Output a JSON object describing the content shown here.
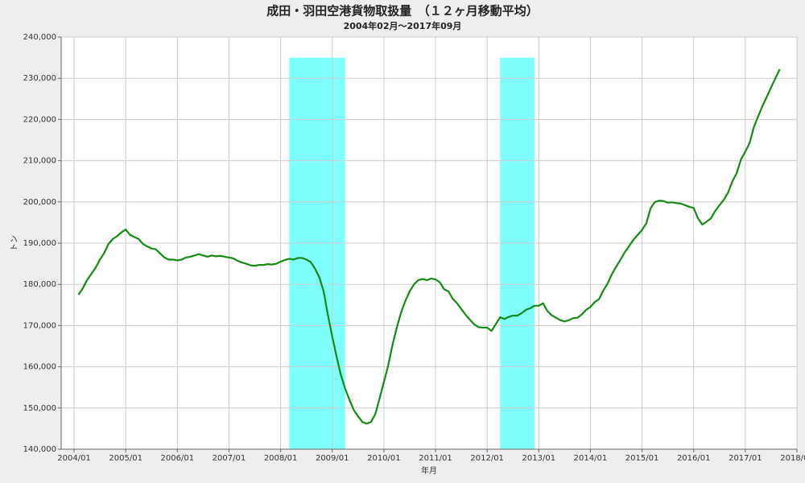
{
  "chart_data": {
    "type": "line",
    "title": "成田・羽田空港貨物取扱量　（１２ヶ月移動平均）",
    "subtitle": "2004年02月～2017年09月",
    "x_label": "年月",
    "y_label": "トン",
    "color": "#158a15",
    "shading_color": "#80ffff",
    "shading_top": 235000,
    "shading": [
      {
        "start": "2008/03",
        "end": "2009/04"
      },
      {
        "start": "2012/04",
        "end": "2012/12"
      }
    ],
    "xlim": [
      "2003/10",
      "2018/01"
    ],
    "xticks": [
      "2004/01",
      "2005/01",
      "2006/01",
      "2007/01",
      "2008/01",
      "2009/01",
      "2010/01",
      "2011/01",
      "2012/01",
      "2013/01",
      "2014/01",
      "2015/01",
      "2016/01",
      "2017/01",
      "2018/01"
    ],
    "ylim": [
      140000,
      240000
    ],
    "yticks": [
      {
        "value": 140000,
        "label": "140,000"
      },
      {
        "value": 150000,
        "label": "150,000"
      },
      {
        "value": 160000,
        "label": "160,000"
      },
      {
        "value": 170000,
        "label": "170,000"
      },
      {
        "value": 180000,
        "label": "180,000"
      },
      {
        "value": 190000,
        "label": "190,000"
      },
      {
        "value": 200000,
        "label": "200,000"
      },
      {
        "value": 210000,
        "label": "210,000"
      },
      {
        "value": 220000,
        "label": "220,000"
      },
      {
        "value": 230000,
        "label": "230,000"
      },
      {
        "value": 240000,
        "label": "240,000"
      }
    ],
    "grid": true,
    "x": [
      "2004/02",
      "2004/03",
      "2004/04",
      "2004/05",
      "2004/06",
      "2004/07",
      "2004/08",
      "2004/09",
      "2004/10",
      "2004/11",
      "2004/12",
      "2005/01",
      "2005/02",
      "2005/03",
      "2005/04",
      "2005/05",
      "2005/06",
      "2005/07",
      "2005/08",
      "2005/09",
      "2005/10",
      "2005/11",
      "2005/12",
      "2006/01",
      "2006/02",
      "2006/03",
      "2006/04",
      "2006/05",
      "2006/06",
      "2006/07",
      "2006/08",
      "2006/09",
      "2006/10",
      "2006/11",
      "2006/12",
      "2007/01",
      "2007/02",
      "2007/03",
      "2007/04",
      "2007/05",
      "2007/06",
      "2007/07",
      "2007/08",
      "2007/09",
      "2007/10",
      "2007/11",
      "2007/12",
      "2008/01",
      "2008/02",
      "2008/03",
      "2008/04",
      "2008/05",
      "2008/06",
      "2008/07",
      "2008/08",
      "2008/09",
      "2008/10",
      "2008/11",
      "2008/12",
      "2009/01",
      "2009/02",
      "2009/03",
      "2009/04",
      "2009/05",
      "2009/06",
      "2009/07",
      "2009/08",
      "2009/09",
      "2009/10",
      "2009/11",
      "2009/12",
      "2010/01",
      "2010/02",
      "2010/03",
      "2010/04",
      "2010/05",
      "2010/06",
      "2010/07",
      "2010/08",
      "2010/09",
      "2010/10",
      "2010/11",
      "2010/12",
      "2011/01",
      "2011/02",
      "2011/03",
      "2011/04",
      "2011/05",
      "2011/06",
      "2011/07",
      "2011/08",
      "2011/09",
      "2011/10",
      "2011/11",
      "2011/12",
      "2012/01",
      "2012/02",
      "2012/03",
      "2012/04",
      "2012/05",
      "2012/06",
      "2012/07",
      "2012/08",
      "2012/09",
      "2012/10",
      "2012/11",
      "2012/12",
      "2013/01",
      "2013/02",
      "2013/03",
      "2013/04",
      "2013/05",
      "2013/06",
      "2013/07",
      "2013/08",
      "2013/09",
      "2013/10",
      "2013/11",
      "2013/12",
      "2014/01",
      "2014/02",
      "2014/03",
      "2014/04",
      "2014/05",
      "2014/06",
      "2014/07",
      "2014/08",
      "2014/09",
      "2014/10",
      "2014/11",
      "2014/12",
      "2015/01",
      "2015/02",
      "2015/03",
      "2015/04",
      "2015/05",
      "2015/06",
      "2015/07",
      "2015/08",
      "2015/09",
      "2015/10",
      "2015/11",
      "2015/12",
      "2016/01",
      "2016/02",
      "2016/03",
      "2016/04",
      "2016/05",
      "2016/06",
      "2016/07",
      "2016/08",
      "2016/09",
      "2016/10",
      "2016/11",
      "2016/12",
      "2017/01",
      "2017/02",
      "2017/03",
      "2017/04",
      "2017/05",
      "2017/06",
      "2017/07",
      "2017/08",
      "2017/09"
    ],
    "values": [
      177500,
      179000,
      181000,
      182500,
      184000,
      186000,
      187600,
      189800,
      191000,
      191700,
      192600,
      193300,
      192000,
      191500,
      191000,
      189800,
      189200,
      188700,
      188500,
      187500,
      186500,
      186000,
      186000,
      185800,
      186000,
      186500,
      186700,
      187000,
      187300,
      187000,
      186700,
      187000,
      186800,
      186900,
      186700,
      186500,
      186300,
      185700,
      185300,
      185000,
      184600,
      184500,
      184700,
      184700,
      184900,
      184800,
      185000,
      185500,
      185900,
      186200,
      186000,
      186400,
      186400,
      186000,
      185400,
      183800,
      181700,
      178300,
      172500,
      167300,
      162500,
      158000,
      154700,
      152000,
      149500,
      148000,
      146600,
      146200,
      146600,
      148500,
      152300,
      156300,
      160300,
      165300,
      169500,
      173200,
      176000,
      178300,
      180000,
      181000,
      181300,
      181000,
      181400,
      181200,
      180500,
      178800,
      178300,
      176500,
      175400,
      174000,
      172600,
      171400,
      170300,
      169600,
      169500,
      169500,
      168700,
      170300,
      172000,
      171600,
      172100,
      172400,
      172400,
      173000,
      173800,
      174200,
      174800,
      174800,
      175400,
      173500,
      172500,
      171900,
      171300,
      171000,
      171300,
      171800,
      171900,
      172700,
      173800,
      174500,
      175700,
      176400,
      178500,
      180200,
      182500,
      184300,
      186000,
      187800,
      189300,
      190800,
      192000,
      193200,
      194800,
      198500,
      200000,
      200300,
      200200,
      199800,
      199900,
      199700,
      199600,
      199200,
      198800,
      198500,
      196000,
      194500,
      195200,
      196000,
      197800,
      199200,
      200500,
      202300,
      205000,
      207000,
      210300,
      212200,
      214300,
      218200,
      220800,
      223300,
      225500,
      227800,
      230000,
      232200
    ]
  }
}
